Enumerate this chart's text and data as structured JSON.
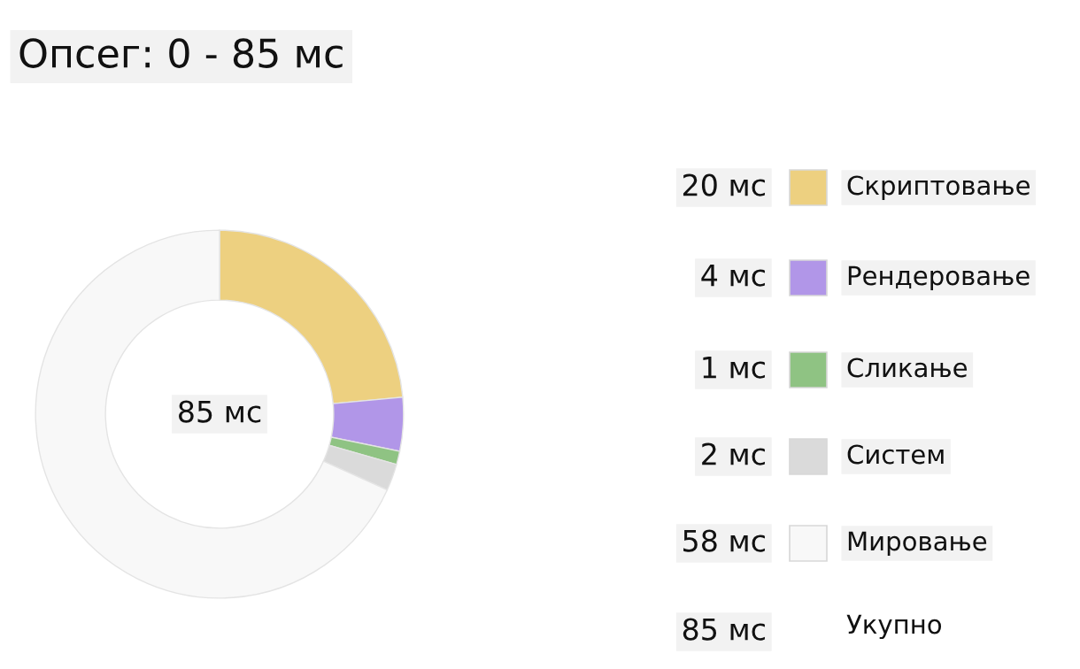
{
  "chart_data": {
    "type": "donut",
    "title": "Опсег: 0 - 85 мс",
    "categories": [
      "Скриптовање",
      "Рендеровање",
      "Сликање",
      "Систем",
      "Мировање"
    ],
    "values": [
      20,
      4,
      1,
      2,
      58
    ],
    "value_labels": [
      "20 мс",
      "4 мс",
      "1 мс",
      "2 мс",
      "58 мс"
    ],
    "colors": [
      "#edd080",
      "#b196e8",
      "#8fc383",
      "#dadada",
      "#f8f8f8"
    ],
    "annotations": [
      "85 мс",
      "85 мс",
      "Укупно"
    ],
    "legend": "right"
  }
}
